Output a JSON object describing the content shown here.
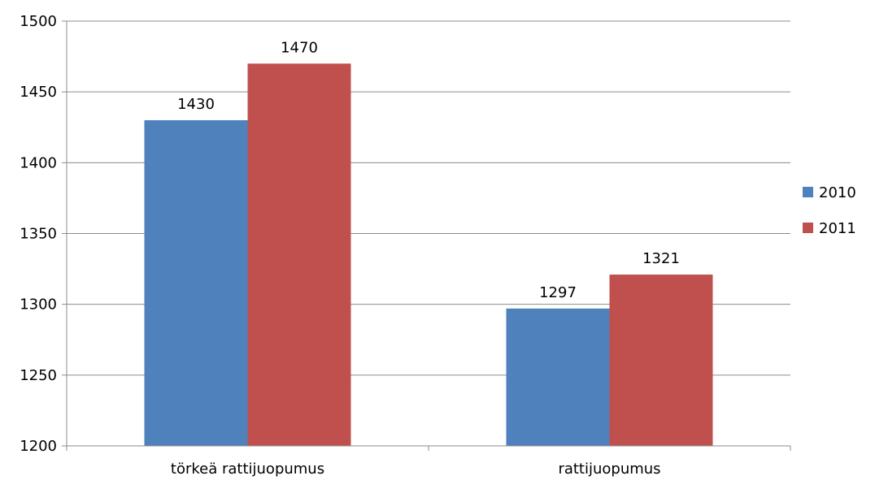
{
  "chart_data": {
    "type": "bar",
    "categories": [
      "törkeä rattijuopumus",
      "rattijuopumus"
    ],
    "series": [
      {
        "name": "2010",
        "values": [
          1430,
          1297
        ],
        "color": "#4f81bd"
      },
      {
        "name": "2011",
        "values": [
          1470,
          1321
        ],
        "color": "#c0504d"
      }
    ],
    "ylim": [
      1200,
      1500
    ],
    "yticks": [
      1200,
      1250,
      1300,
      1350,
      1400,
      1450,
      1500
    ],
    "grid": true,
    "legend": "right",
    "data_labels": true
  }
}
